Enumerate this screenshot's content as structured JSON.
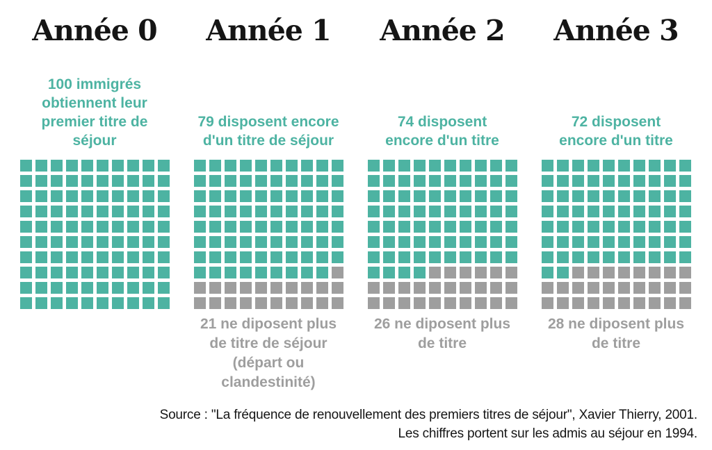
{
  "chart_data": {
    "type": "waffle",
    "grid": {
      "rows": 10,
      "cols": 10,
      "total_per_grid": 100
    },
    "categories": [
      "Année 0",
      "Année 1",
      "Année 2",
      "Année 3"
    ],
    "series": [
      {
        "name": "disposent d'un titre de séjour",
        "color": "#4db3a2",
        "values": [
          100,
          79,
          74,
          72
        ]
      },
      {
        "name": "ne disposent plus de titre (départ ou clandestinité)",
        "color": "#9e9e9e",
        "values": [
          0,
          21,
          26,
          28
        ]
      }
    ],
    "title": "",
    "legend": "none",
    "annotations": [
      "100 immigrés obtiennent leur premier titre de séjour",
      "79 disposent encore d'un titre de séjour / 21 ne diposent plus de titre de séjour (départ ou clandestinité)",
      "74 disposent encore d'un titre / 26 ne diposent plus de titre",
      "72 disposent encore d'un titre / 28 ne diposent plus de titre"
    ]
  },
  "columns": [
    {
      "title": "Année 0",
      "kept": 100,
      "lost": 0,
      "kept_label": "100 immigrés\nobtiennent leur\npremier titre de\nséjour",
      "lost_label": ""
    },
    {
      "title": "Année 1",
      "kept": 79,
      "lost": 21,
      "kept_label": "79 disposent encore\nd'un titre de séjour",
      "lost_label": "21 ne diposent plus\nde titre de séjour\n(départ ou\nclandestinité)"
    },
    {
      "title": "Année 2",
      "kept": 74,
      "lost": 26,
      "kept_label": "74 disposent\nencore d'un titre",
      "lost_label": "26 ne diposent plus\nde titre"
    },
    {
      "title": "Année 3",
      "kept": 72,
      "lost": 28,
      "kept_label": "72 disposent\nencore d'un titre",
      "lost_label": "28 ne diposent plus\nde titre"
    }
  ],
  "source": {
    "line1": "Source : \"La fréquence de renouvellement des premiers titres de séjour\", Xavier Thierry, 2001.",
    "line2": "Les chiffres portent sur les admis au séjour en 1994."
  },
  "colors": {
    "kept": "#4db3a2",
    "lost": "#9e9e9e",
    "title": "#151515"
  }
}
